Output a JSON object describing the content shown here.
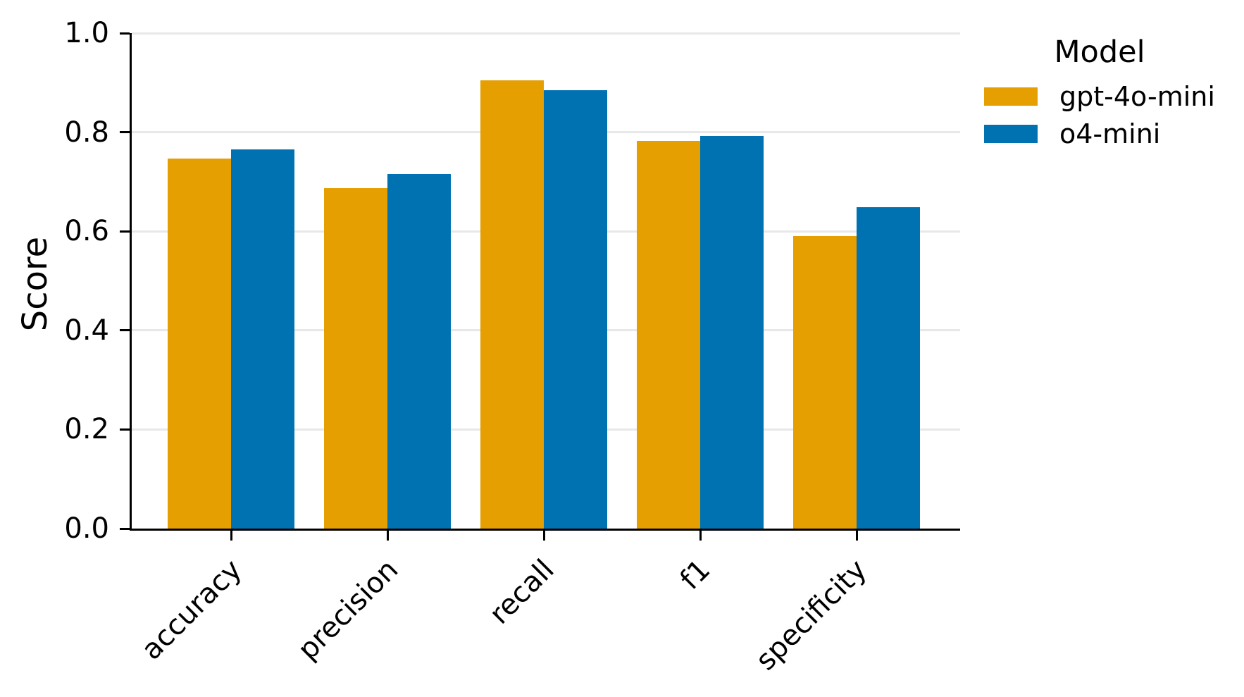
{
  "chart_data": {
    "type": "bar",
    "title": "",
    "xlabel": "",
    "ylabel": "Score",
    "categories": [
      "accuracy",
      "precision",
      "recall",
      "f1",
      "specificity"
    ],
    "series": [
      {
        "name": "gpt-4o-mini",
        "color": "#E69F00",
        "values": [
          0.747,
          0.687,
          0.905,
          0.782,
          0.59
        ]
      },
      {
        "name": "o4-mini",
        "color": "#0072B2",
        "values": [
          0.765,
          0.715,
          0.885,
          0.792,
          0.649
        ]
      }
    ],
    "ylim": [
      0.0,
      1.0
    ],
    "yticks": [
      "0.0",
      "0.2",
      "0.4",
      "0.6",
      "0.8",
      "1.0"
    ],
    "grid": "horizontal-only",
    "legend": {
      "title": "Model",
      "position": "upper-right-outside"
    }
  },
  "colors": {
    "background": "#ffffff",
    "gridline": "#e8e8e8",
    "axis": "#000000",
    "text": "#000000",
    "series_orange": "#E69F00",
    "series_blue": "#0072B2"
  }
}
